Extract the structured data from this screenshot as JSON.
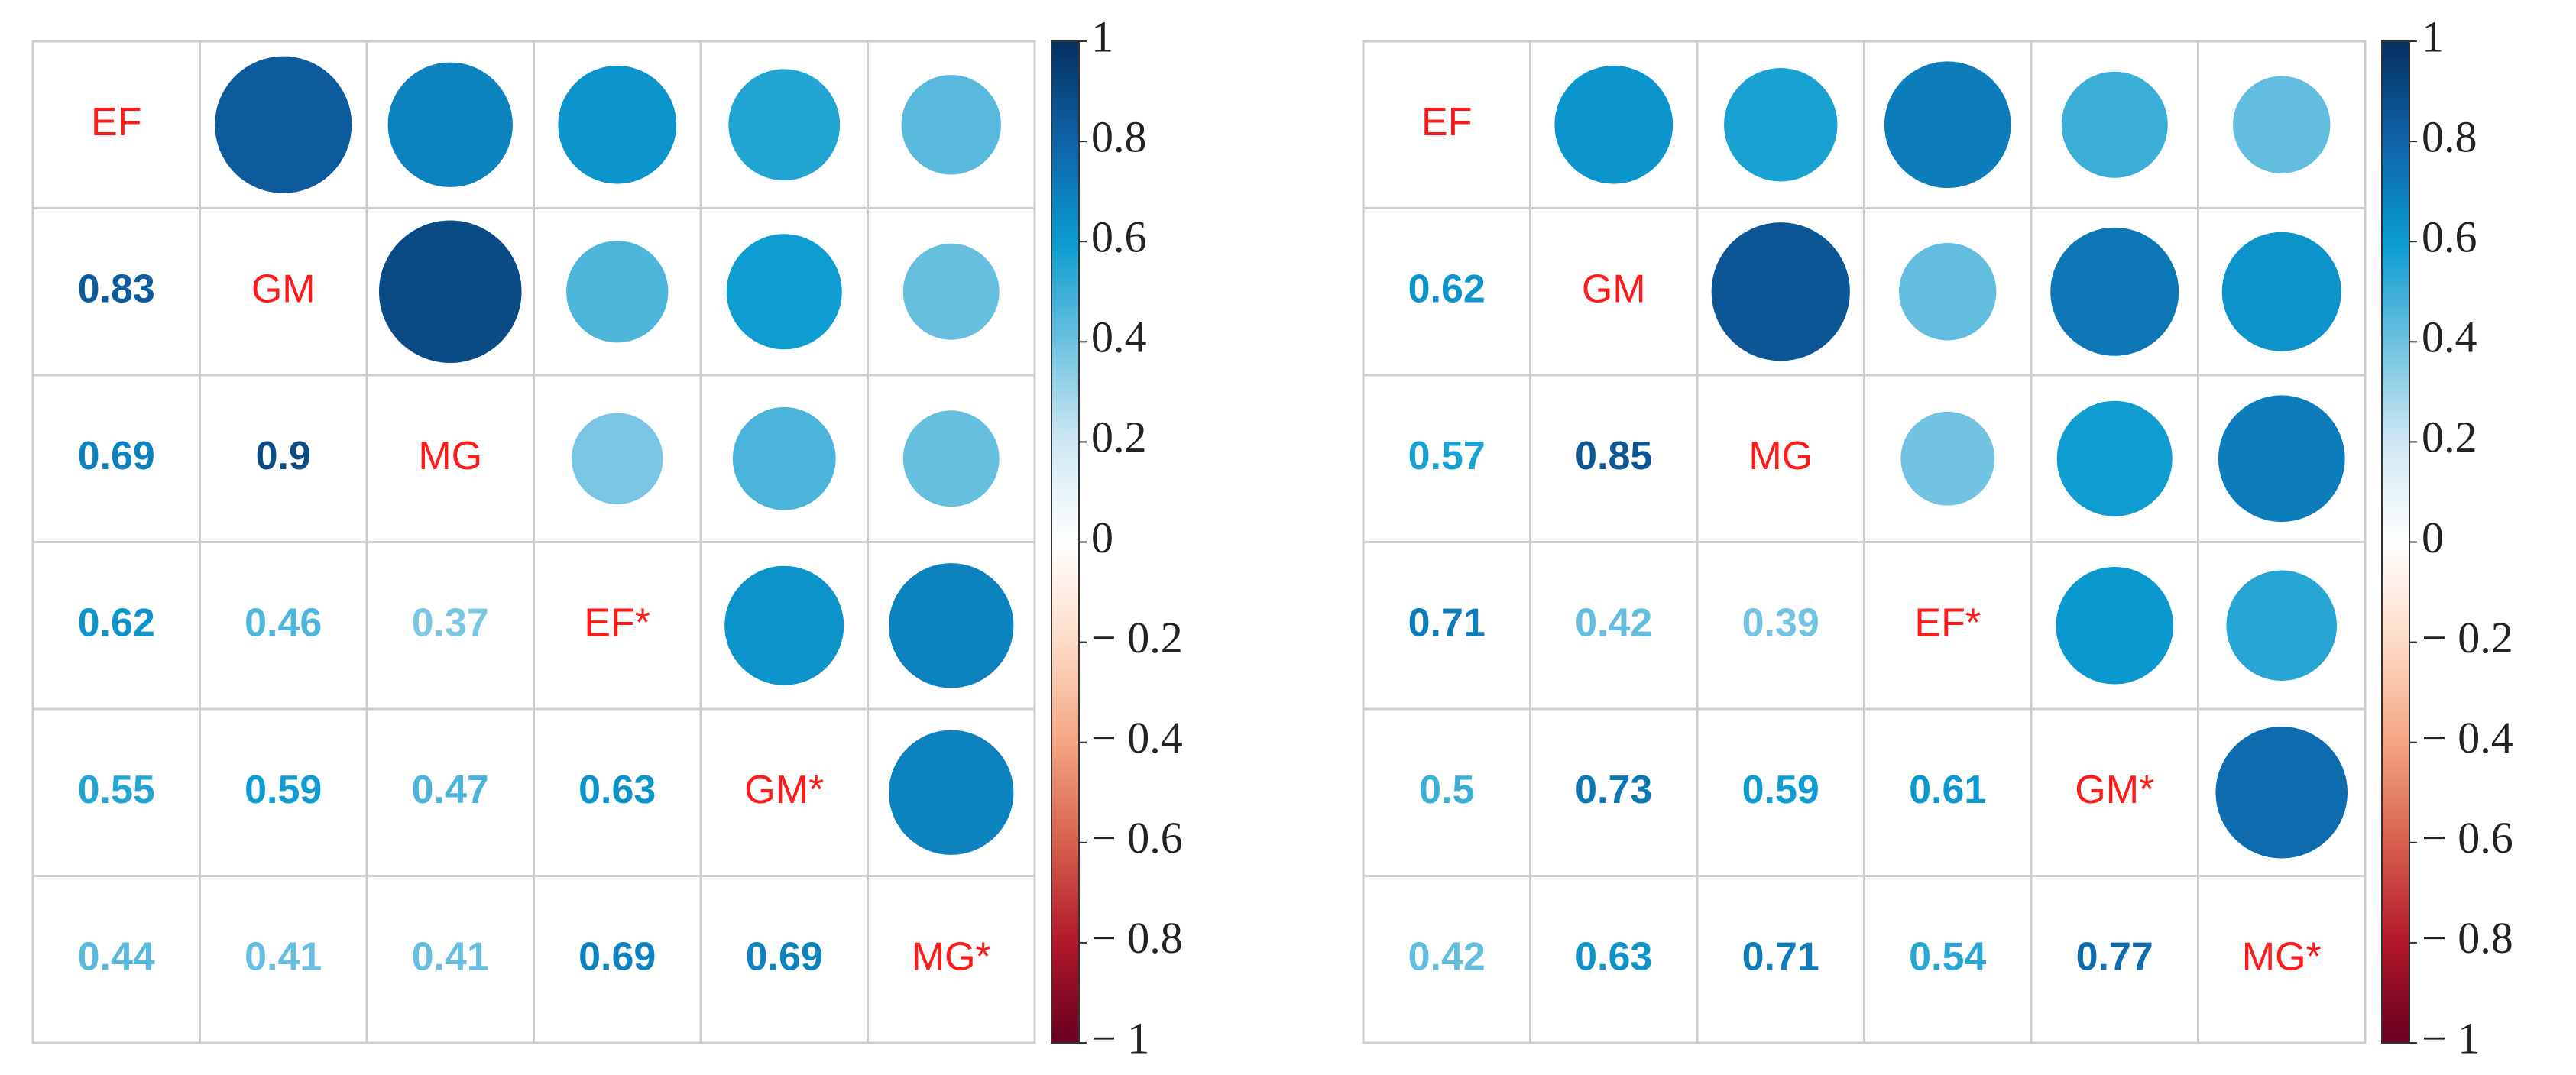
{
  "chart_data": [
    {
      "type": "corrplot",
      "variables": [
        "EF",
        "GM",
        "MG",
        "EF*",
        "GM*",
        "MG*"
      ],
      "values": [
        [],
        [
          0.83
        ],
        [
          0.69,
          0.9
        ],
        [
          0.62,
          0.46,
          0.37
        ],
        [
          0.55,
          0.59,
          0.47,
          0.63
        ],
        [
          0.44,
          0.41,
          0.41,
          0.69,
          0.69
        ]
      ],
      "zlim": [
        -1,
        1
      ],
      "zticks": [
        1,
        0.8,
        0.6,
        0.4,
        0.2,
        0,
        {
          "value": -0.2,
          "label": "− 0.2"
        },
        {
          "value": -0.4,
          "label": "− 0.4"
        },
        {
          "value": -0.6,
          "label": "− 0.6"
        },
        {
          "value": -0.8,
          "label": "− 0.8"
        },
        {
          "value": -1,
          "label": "− 1"
        }
      ],
      "colorscale": [
        "#67001F",
        "#B2182B",
        "#D6604D",
        "#F4A582",
        "#FDDBC7",
        "#FFFFFF",
        "#CFE8F3",
        "#6CC1E0",
        "#0A9BD0",
        "#0F63A8",
        "#053061"
      ],
      "label_color": "#FF1A1A"
    },
    {
      "type": "corrplot",
      "variables": [
        "EF",
        "GM",
        "MG",
        "EF*",
        "GM*",
        "MG*"
      ],
      "values": [
        [],
        [
          0.62
        ],
        [
          0.57,
          0.85
        ],
        [
          0.71,
          0.42,
          0.39
        ],
        [
          0.5,
          0.73,
          0.59,
          0.61
        ],
        [
          0.42,
          0.63,
          0.71,
          0.54,
          0.77
        ]
      ],
      "zlim": [
        -1,
        1
      ],
      "zticks": [
        1,
        0.8,
        0.6,
        0.4,
        0.2,
        0,
        {
          "value": -0.2,
          "label": "− 0.2"
        },
        {
          "value": -0.4,
          "label": "− 0.4"
        },
        {
          "value": -0.6,
          "label": "− 0.6"
        },
        {
          "value": -0.8,
          "label": "− 0.8"
        },
        {
          "value": -1,
          "label": "− 1"
        }
      ],
      "colorscale": [
        "#67001F",
        "#B2182B",
        "#D6604D",
        "#F4A582",
        "#FDDBC7",
        "#FFFFFF",
        "#CFE8F3",
        "#6CC1E0",
        "#0A9BD0",
        "#0F63A8",
        "#053061"
      ],
      "label_color": "#FF1A1A"
    }
  ]
}
